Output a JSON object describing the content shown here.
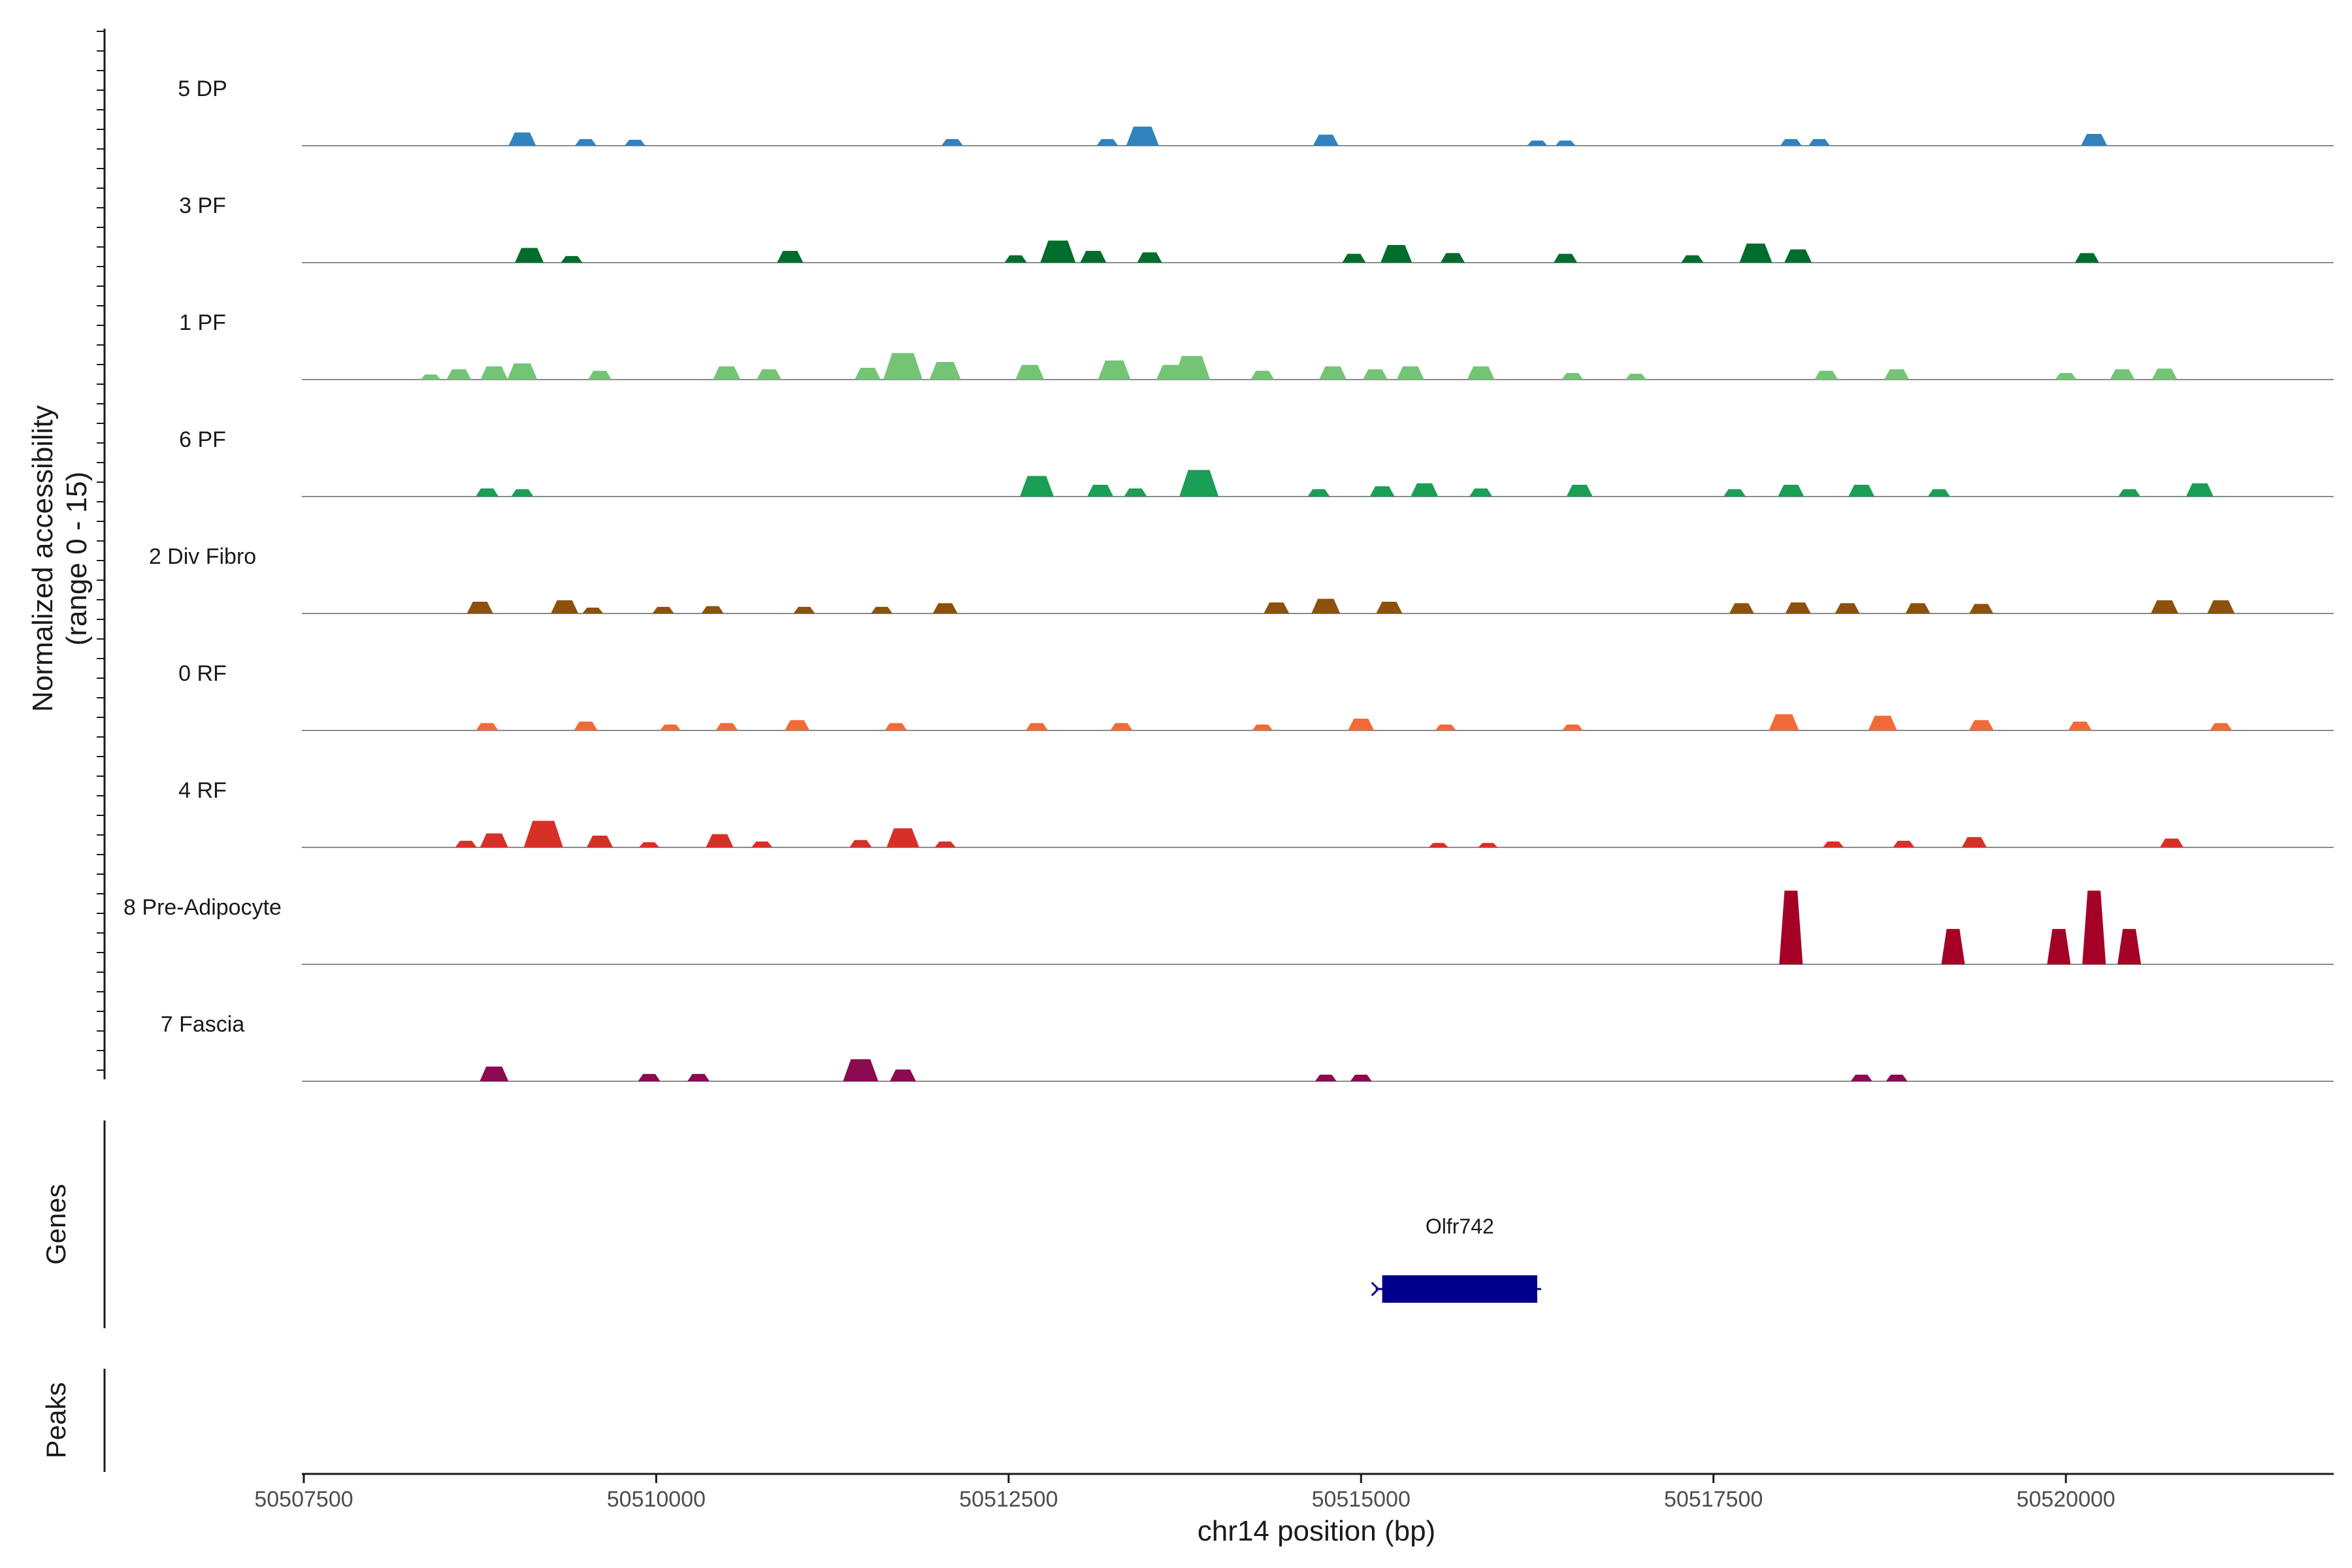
{
  "chart_data": {
    "type": "area",
    "region": {
      "chrom": "chr14",
      "start": 50507500,
      "end": 50522000
    },
    "xlim": [
      50507500,
      50521900
    ],
    "x_ticks": [
      50507500,
      50510000,
      50512500,
      50515000,
      50517500,
      50520000
    ],
    "x_tick_labels": [
      "50507500",
      "50510000",
      "50512500",
      "50515000",
      "50517500",
      "50520000"
    ],
    "xlabel": "chr14 position (bp)",
    "ylabel_line1": "Normalized accessibility",
    "ylabel_line2": "(range 0 - 15)",
    "ylim": [
      0,
      15
    ],
    "genes_label": "Genes",
    "peaks_label": "Peaks",
    "series": [
      {
        "name": "5 DP",
        "color": "#3182bd",
        "peaks": [
          [
            50509050,
            1.8
          ],
          [
            50509500,
            0.9
          ],
          [
            50509850,
            0.8
          ],
          [
            50512100,
            0.9
          ],
          [
            50513200,
            0.9
          ],
          [
            50513450,
            2.6
          ],
          [
            50514750,
            1.5
          ],
          [
            50516250,
            0.7
          ],
          [
            50516450,
            0.7
          ],
          [
            50518050,
            0.9
          ],
          [
            50518250,
            0.9
          ],
          [
            50520200,
            1.6
          ]
        ]
      },
      {
        "name": "3 PF",
        "color": "#006d2c",
        "peaks": [
          [
            50509100,
            2.0
          ],
          [
            50509400,
            0.9
          ],
          [
            50510950,
            1.6
          ],
          [
            50512550,
            1.0
          ],
          [
            50512850,
            3.0
          ],
          [
            50513100,
            1.6
          ],
          [
            50513500,
            1.4
          ],
          [
            50514950,
            1.2
          ],
          [
            50515250,
            2.4
          ],
          [
            50515650,
            1.3
          ],
          [
            50516450,
            1.2
          ],
          [
            50517350,
            1.0
          ],
          [
            50517800,
            2.6
          ],
          [
            50518100,
            1.8
          ],
          [
            50520150,
            1.3
          ]
        ]
      },
      {
        "name": "1 PF",
        "color": "#74c476",
        "peaks": [
          [
            50508400,
            0.7
          ],
          [
            50508600,
            1.4
          ],
          [
            50508850,
            1.8
          ],
          [
            50509050,
            2.2
          ],
          [
            50509600,
            1.2
          ],
          [
            50510500,
            1.8
          ],
          [
            50510800,
            1.4
          ],
          [
            50511500,
            1.6
          ],
          [
            50511750,
            3.6
          ],
          [
            50512050,
            2.4
          ],
          [
            50512650,
            2.0
          ],
          [
            50513250,
            2.6
          ],
          [
            50513650,
            2.0
          ],
          [
            50513800,
            3.2
          ],
          [
            50514300,
            1.2
          ],
          [
            50514800,
            1.8
          ],
          [
            50515100,
            1.4
          ],
          [
            50515350,
            1.8
          ],
          [
            50515850,
            1.8
          ],
          [
            50516500,
            0.9
          ],
          [
            50516950,
            0.8
          ],
          [
            50518300,
            1.2
          ],
          [
            50518800,
            1.4
          ],
          [
            50520000,
            0.9
          ],
          [
            50520400,
            1.4
          ],
          [
            50520700,
            1.5
          ]
        ]
      },
      {
        "name": "6 PF",
        "color": "#1b9e55",
        "peaks": [
          [
            50508800,
            1.1
          ],
          [
            50509050,
            1.0
          ],
          [
            50512700,
            2.8
          ],
          [
            50513150,
            1.6
          ],
          [
            50513400,
            1.1
          ],
          [
            50513850,
            3.6
          ],
          [
            50514700,
            1.0
          ],
          [
            50515150,
            1.4
          ],
          [
            50515450,
            1.8
          ],
          [
            50515850,
            1.1
          ],
          [
            50516550,
            1.6
          ],
          [
            50517650,
            1.0
          ],
          [
            50518050,
            1.6
          ],
          [
            50518550,
            1.6
          ],
          [
            50519100,
            1.0
          ],
          [
            50520450,
            1.0
          ],
          [
            50520950,
            1.8
          ]
        ]
      },
      {
        "name": "2 Div Fibro",
        "color": "#8c510a",
        "peaks": [
          [
            50508750,
            1.6
          ],
          [
            50509350,
            1.8
          ],
          [
            50509550,
            0.8
          ],
          [
            50510050,
            0.9
          ],
          [
            50510400,
            1.0
          ],
          [
            50511050,
            0.9
          ],
          [
            50511600,
            0.9
          ],
          [
            50512050,
            1.4
          ],
          [
            50514400,
            1.5
          ],
          [
            50514750,
            2.0
          ],
          [
            50515200,
            1.6
          ],
          [
            50517700,
            1.4
          ],
          [
            50518100,
            1.5
          ],
          [
            50518450,
            1.4
          ],
          [
            50518950,
            1.4
          ],
          [
            50519400,
            1.3
          ],
          [
            50520700,
            1.8
          ],
          [
            50521100,
            1.8
          ]
        ]
      },
      {
        "name": "0 RF",
        "color": "#f16a3a",
        "peaks": [
          [
            50508800,
            1.0
          ],
          [
            50509500,
            1.2
          ],
          [
            50510100,
            0.8
          ],
          [
            50510500,
            1.0
          ],
          [
            50511000,
            1.4
          ],
          [
            50511700,
            1.0
          ],
          [
            50512700,
            1.0
          ],
          [
            50513300,
            1.0
          ],
          [
            50514300,
            0.8
          ],
          [
            50515000,
            1.6
          ],
          [
            50515600,
            0.8
          ],
          [
            50516500,
            0.8
          ],
          [
            50518000,
            2.2
          ],
          [
            50518700,
            2.0
          ],
          [
            50519400,
            1.4
          ],
          [
            50520100,
            1.2
          ],
          [
            50521100,
            1.0
          ]
        ]
      },
      {
        "name": "4 RF",
        "color": "#d73027",
        "peaks": [
          [
            50508650,
            0.9
          ],
          [
            50508850,
            1.9
          ],
          [
            50509200,
            3.6
          ],
          [
            50509600,
            1.6
          ],
          [
            50509950,
            0.7
          ],
          [
            50510450,
            1.8
          ],
          [
            50510750,
            0.8
          ],
          [
            50511450,
            1.0
          ],
          [
            50511750,
            2.6
          ],
          [
            50512050,
            0.8
          ],
          [
            50515550,
            0.6
          ],
          [
            50515900,
            0.6
          ],
          [
            50518350,
            0.8
          ],
          [
            50518850,
            0.9
          ],
          [
            50519350,
            1.4
          ],
          [
            50520750,
            1.2
          ]
        ]
      },
      {
        "name": "8 Pre-Adipocyte",
        "color": "#a50026",
        "peaks": [
          [
            50518050,
            10.0
          ],
          [
            50519200,
            4.8
          ],
          [
            50519950,
            4.8
          ],
          [
            50520200,
            10.0
          ],
          [
            50520450,
            4.8
          ]
        ]
      },
      {
        "name": "7 Fascia",
        "color": "#8b0a50",
        "peaks": [
          [
            50508850,
            2.0
          ],
          [
            50509950,
            1.0
          ],
          [
            50510300,
            1.0
          ],
          [
            50511450,
            3.0
          ],
          [
            50511750,
            1.6
          ],
          [
            50514750,
            0.9
          ],
          [
            50515000,
            0.9
          ],
          [
            50518550,
            0.9
          ],
          [
            50518800,
            0.9
          ]
        ]
      }
    ],
    "genes": [
      {
        "name": "Olfr742",
        "start": 50515150,
        "end": 50516250,
        "color": "#00008b",
        "strand": "-"
      }
    ],
    "peaks_track": []
  }
}
